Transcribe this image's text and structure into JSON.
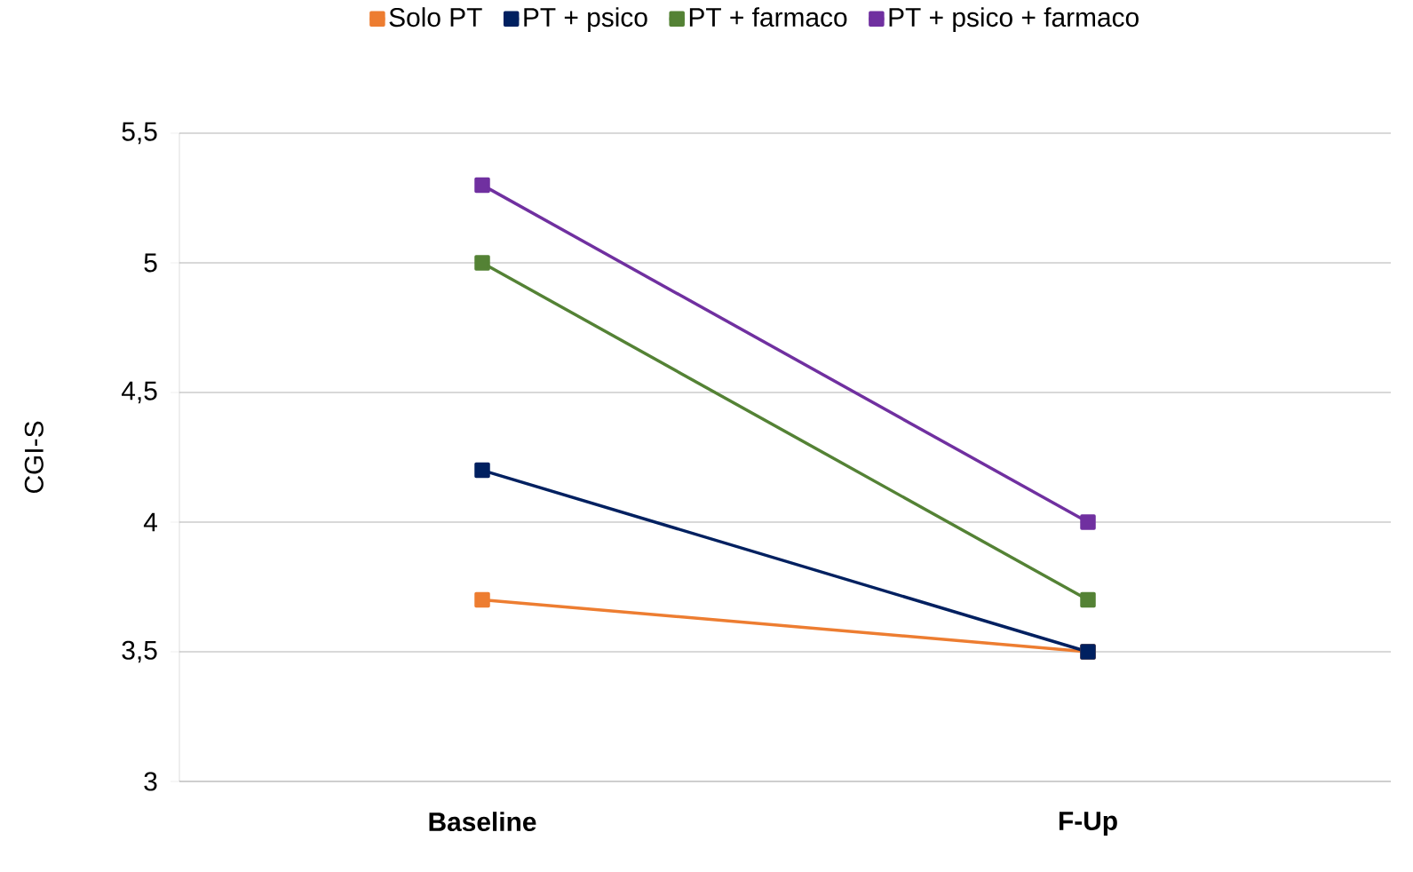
{
  "chart_data": {
    "type": "line",
    "ylabel": "CGI-S",
    "categories": [
      "Baseline",
      "F-Up"
    ],
    "series": [
      {
        "name": "Solo PT",
        "color": "#ed7d31",
        "values": [
          3.7,
          3.5
        ]
      },
      {
        "name": "PT +  psico",
        "color": "#002060",
        "values": [
          4.2,
          3.5
        ]
      },
      {
        "name": "PT + farmaco",
        "color": "#548235",
        "values": [
          5.0,
          3.7
        ]
      },
      {
        "name": "PT + psico + farmaco",
        "color": "#7030a0",
        "values": [
          5.3,
          4.0
        ]
      }
    ],
    "ylim": [
      3,
      5.5
    ],
    "yticks": [
      3,
      {
        "value": 3.5,
        "label": "3,5"
      },
      4,
      {
        "value": 4.5,
        "label": "4,5"
      },
      5,
      {
        "value": 5.5,
        "label": "5,5"
      }
    ],
    "grid": "y",
    "legend": "top",
    "marker": "square",
    "line_style": "solid"
  }
}
